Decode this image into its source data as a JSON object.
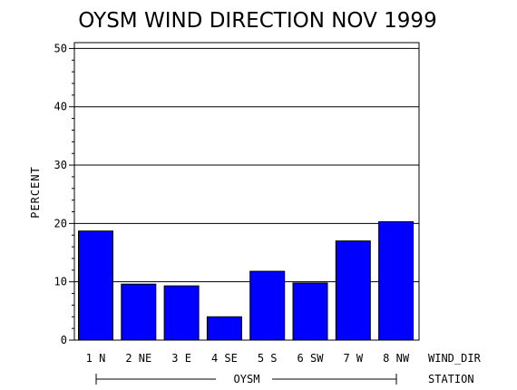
{
  "chart_data": {
    "type": "bar",
    "title": "OYSM WIND DIRECTION NOV 1999",
    "ylabel": "PERCENT",
    "xlabel": "WIND_DIR",
    "group_axis_label": "STATION",
    "group_name": "OYSM",
    "categories": [
      "1 N",
      "2 NE",
      "3 E",
      "4 SE",
      "5 S",
      "6 SW",
      "7 W",
      "8 NW"
    ],
    "values": [
      18.7,
      9.6,
      9.3,
      4.0,
      11.8,
      9.8,
      17.0,
      20.3
    ],
    "ylim": [
      0,
      51
    ],
    "yticks": [
      0,
      10,
      20,
      30,
      40,
      50
    ],
    "grid": true,
    "bar_color": "#0000ff"
  }
}
